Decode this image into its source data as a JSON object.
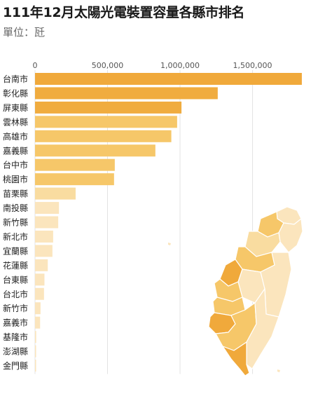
{
  "chart_data": {
    "type": "bar",
    "orientation": "horizontal",
    "title": "111年12月太陽光電裝置容量各縣市排名",
    "subtitle": "單位：瓩",
    "x_ticks": [
      "0",
      "500,000",
      "1,000,000",
      "1,500,000"
    ],
    "x_tick_values": [
      0,
      500000,
      1000000,
      1500000
    ],
    "xlim": [
      0,
      1850000
    ],
    "grid": true,
    "categories": [
      "台南市",
      "彰化縣",
      "屏東縣",
      "雲林縣",
      "高雄市",
      "嘉義縣",
      "台中市",
      "桃園市",
      "苗栗縣",
      "南投縣",
      "新竹縣",
      "新北市",
      "宜蘭縣",
      "花蓮縣",
      "台東縣",
      "台北市",
      "新竹市",
      "嘉義市",
      "基隆市",
      "澎湖縣",
      "金門縣"
    ],
    "values": [
      1840000,
      1260000,
      1010000,
      980000,
      940000,
      830000,
      550000,
      545000,
      280000,
      165000,
      160000,
      125000,
      120000,
      88000,
      65000,
      62000,
      38000,
      35000,
      8000,
      6000,
      5000
    ],
    "colors": [
      "#f0a93b",
      "#f0ac3f",
      "#f0ac3f",
      "#f6c769",
      "#f6c769",
      "#f6c769",
      "#f6c769",
      "#f6c769",
      "#f9dca0",
      "#fbe5bd",
      "#fbe5bd",
      "#fbe5bd",
      "#fbe5bd",
      "#fbe5bd",
      "#fbe5bd",
      "#fbe5bd",
      "#fbe5bd",
      "#fbe5bd",
      "#fbe5bd",
      "#fbe5bd",
      "#fbe5bd"
    ]
  },
  "map": {
    "colors": {
      "dark": "#f0a93b",
      "mid": "#f6c769",
      "light": "#f9dca0",
      "pale": "#fbe5bd",
      "border": "#ffffff"
    }
  }
}
